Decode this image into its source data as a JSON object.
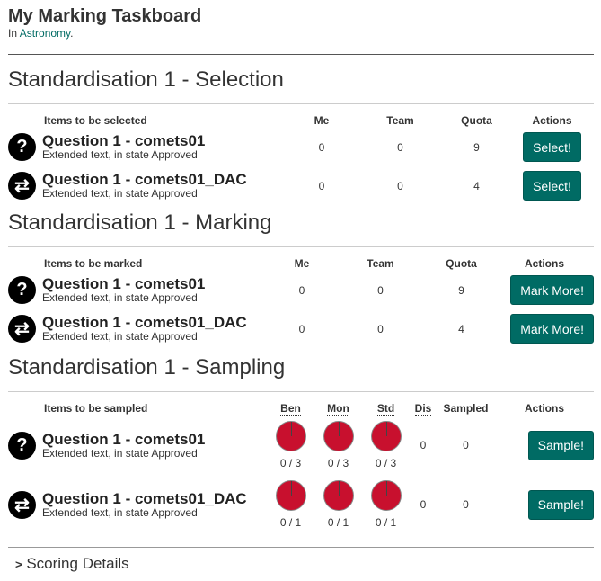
{
  "header": {
    "title": "My Marking Taskboard",
    "subtitle_prefix": "In ",
    "subtitle_link": "Astronomy",
    "subtitle_suffix": "."
  },
  "selection": {
    "title": "Standardisation 1 - Selection",
    "columns": [
      "Items to be selected",
      "Me",
      "Team",
      "Quota",
      "Actions"
    ],
    "rows": [
      {
        "icon": "question-icon",
        "title": "Question 1 - comets01",
        "subtitle": "Extended text, in state Approved",
        "me": "0",
        "team": "0",
        "quota": "9",
        "action": "Select!"
      },
      {
        "icon": "swap-icon",
        "title": "Question 1 - comets01_DAC",
        "subtitle": "Extended text, in state Approved",
        "me": "0",
        "team": "0",
        "quota": "4",
        "action": "Select!"
      }
    ]
  },
  "marking": {
    "title": "Standardisation 1 - Marking",
    "columns": [
      "Items to be marked",
      "Me",
      "Team",
      "Quota",
      "Actions"
    ],
    "rows": [
      {
        "icon": "question-icon",
        "title": "Question 1 - comets01",
        "subtitle": "Extended text, in state Approved",
        "me": "0",
        "team": "0",
        "quota": "9",
        "action": "Mark More!"
      },
      {
        "icon": "swap-icon",
        "title": "Question 1 - comets01_DAC",
        "subtitle": "Extended text, in state Approved",
        "me": "0",
        "team": "0",
        "quota": "4",
        "action": "Mark More!"
      }
    ]
  },
  "sampling": {
    "title": "Standardisation 1 - Sampling",
    "columns": [
      "Items to be sampled",
      "Ben",
      "Mon",
      "Std",
      "Dis",
      "Sampled",
      "Actions"
    ],
    "rows": [
      {
        "icon": "question-icon",
        "title": "Question 1 - comets01",
        "subtitle": "Extended text, in state Approved",
        "ben": "0 / 3",
        "mon": "0 / 3",
        "std": "0 / 3",
        "progress": [
          0,
          0,
          0
        ],
        "dis": "0",
        "sampled": "0",
        "action": "Sample!"
      },
      {
        "icon": "swap-icon",
        "title": "Question 1 - comets01_DAC",
        "subtitle": "Extended text, in state Approved",
        "ben": "0 / 1",
        "mon": "0 / 1",
        "std": "0 / 1",
        "progress": [
          0,
          0,
          0
        ],
        "dis": "0",
        "sampled": "0",
        "action": "Sample!"
      }
    ]
  },
  "footer": {
    "scoring_details": "Scoring Details"
  },
  "colors": {
    "accent": "#006b64",
    "pie": "#c8102e"
  }
}
